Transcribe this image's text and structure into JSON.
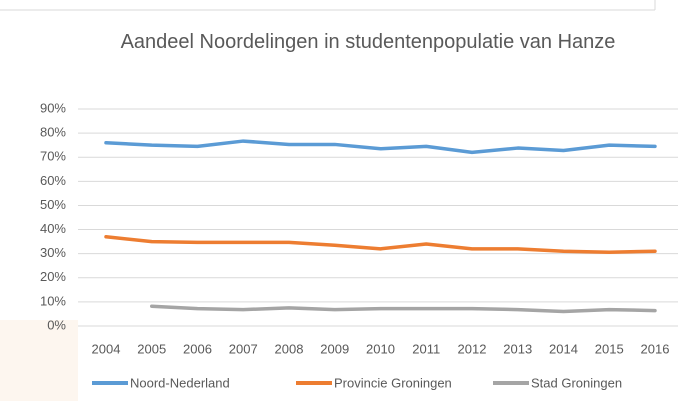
{
  "chart_data": {
    "type": "line",
    "title": "Aandeel Noordelingen in studentenpopulatie van Hanze",
    "categories": [
      "2004",
      "2005",
      "2006",
      "2007",
      "2008",
      "2009",
      "2010",
      "2011",
      "2012",
      "2013",
      "2014",
      "2015",
      "2016"
    ],
    "series": [
      {
        "name": "Noord-Nederland",
        "color": "#5b9bd5",
        "values": [
          76,
          75,
          74.5,
          76.7,
          75.3,
          75.3,
          73.5,
          74.5,
          72,
          73.8,
          72.8,
          75,
          74.5
        ]
      },
      {
        "name": "Provincie Groningen",
        "color": "#ed7d31",
        "values": [
          37,
          35,
          34.7,
          34.7,
          34.7,
          33.5,
          32,
          34,
          32,
          32,
          31,
          30.6,
          31
        ]
      },
      {
        "name": "Stad Groningen",
        "color": "#a5a5a5",
        "values": [
          null,
          8.2,
          7.2,
          6.8,
          7.5,
          6.8,
          7.2,
          7.2,
          7.2,
          6.8,
          6,
          6.8,
          6.4
        ]
      }
    ],
    "ylim": [
      0,
      90
    ],
    "yticks": [
      {
        "value": 0,
        "label": "0%"
      },
      {
        "value": 10,
        "label": "10%"
      },
      {
        "value": 20,
        "label": "20%"
      },
      {
        "value": 30,
        "label": "30%"
      },
      {
        "value": 40,
        "label": "40%"
      },
      {
        "value": 50,
        "label": "50%"
      },
      {
        "value": 60,
        "label": "60%"
      },
      {
        "value": 70,
        "label": "70%"
      },
      {
        "value": 80,
        "label": "80%"
      },
      {
        "value": 90,
        "label": "90%"
      }
    ],
    "grid": true,
    "legend": "bottom"
  }
}
